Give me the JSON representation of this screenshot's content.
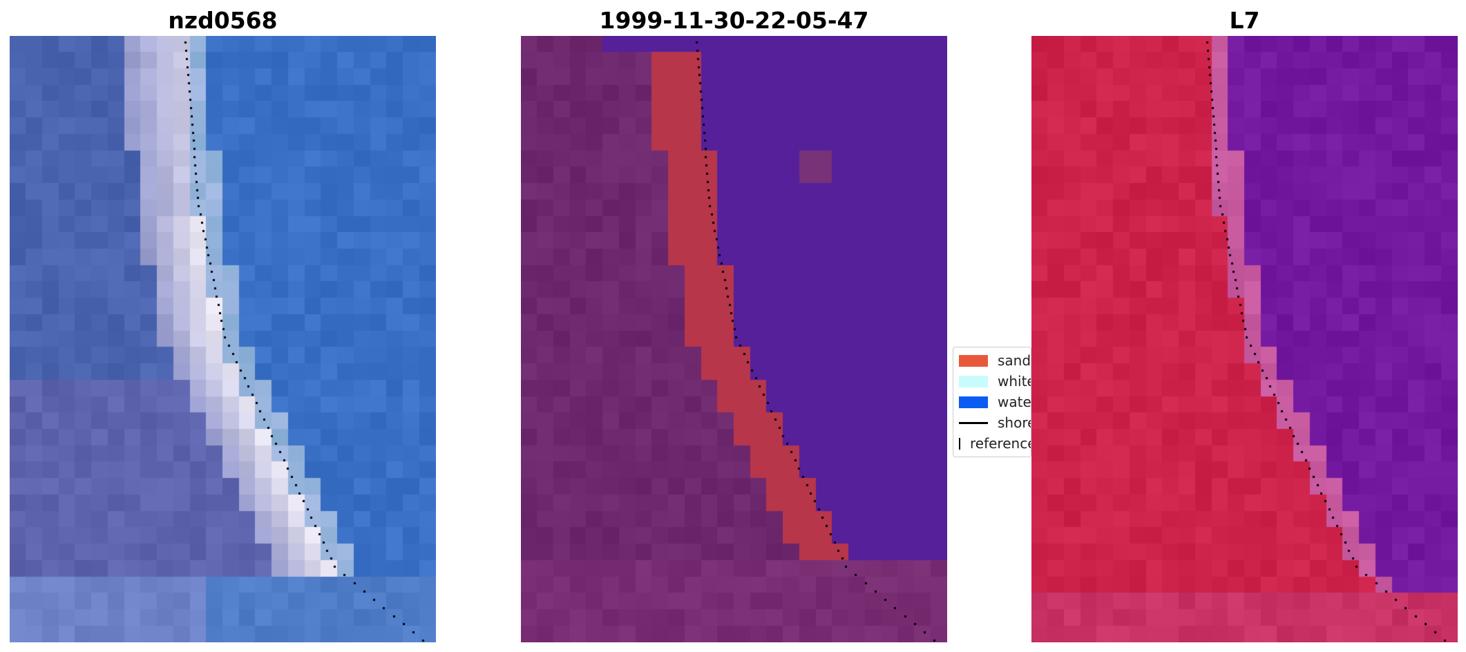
{
  "panels": [
    {
      "title": "nzd0568"
    },
    {
      "title": "1999-11-30-22-05-47"
    },
    {
      "title": "L7"
    }
  ],
  "legend": {
    "items": [
      {
        "label": "sand",
        "color": "#e8593a",
        "kind": "patch"
      },
      {
        "label": "white-water",
        "color": "#c8fcfc",
        "kind": "patch"
      },
      {
        "label": "water",
        "color": "#0b5cf2",
        "kind": "patch"
      },
      {
        "label": "shoreline",
        "color": "#000000",
        "kind": "line"
      },
      {
        "label": "reference shoreline buffer",
        "color": "#9b2a32",
        "kind": "patch"
      }
    ]
  },
  "colors": {
    "sand_class": "#b7364a",
    "water_class": "#55209a"
  }
}
